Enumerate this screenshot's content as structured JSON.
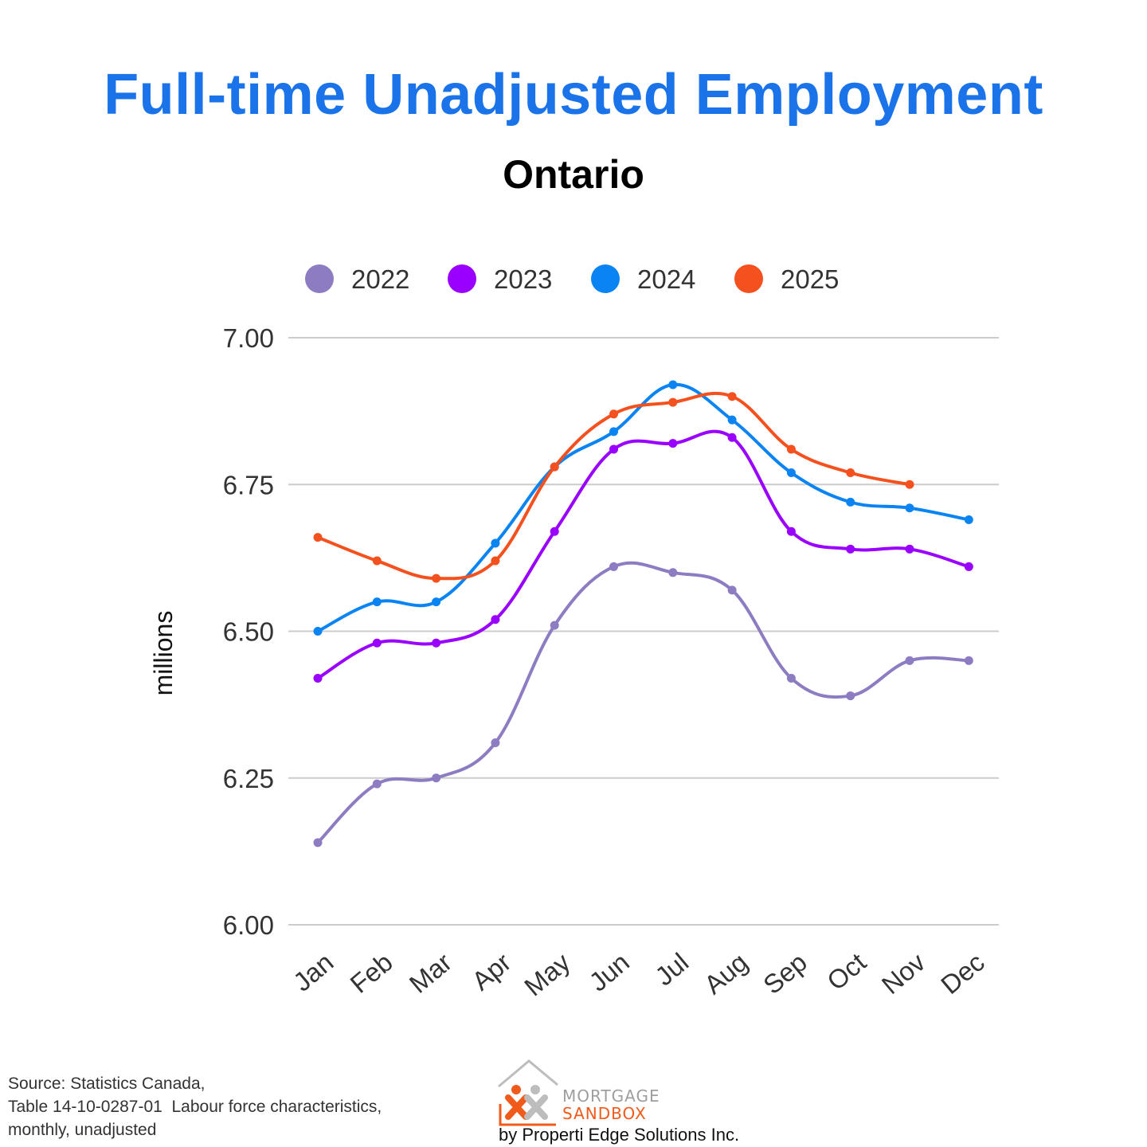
{
  "title": "Full-time Unadjusted Employment",
  "subtitle": "Ontario",
  "chart_data": {
    "type": "line",
    "title": "Full-time Unadjusted Employment",
    "subtitle": "Ontario",
    "ylabel": "millions",
    "xlabel": "",
    "categories": [
      "Jan",
      "Feb",
      "Mar",
      "Apr",
      "May",
      "Jun",
      "Jul",
      "Aug",
      "Sep",
      "Oct",
      "Nov",
      "Dec"
    ],
    "ylim": [
      6.0,
      7.0
    ],
    "yticks": [
      "6.00",
      "6.25",
      "6.50",
      "6.75",
      "7.00"
    ],
    "grid": true,
    "legend_position": "top",
    "series": [
      {
        "name": "2022",
        "color": "#8e7cc3",
        "values": [
          6.14,
          6.24,
          6.25,
          6.31,
          6.51,
          6.61,
          6.6,
          6.57,
          6.42,
          6.39,
          6.45,
          6.45
        ]
      },
      {
        "name": "2023",
        "color": "#9900ff",
        "values": [
          6.42,
          6.48,
          6.48,
          6.52,
          6.67,
          6.81,
          6.82,
          6.83,
          6.67,
          6.64,
          6.64,
          6.61
        ]
      },
      {
        "name": "2024",
        "color": "#0b84f3",
        "values": [
          6.5,
          6.55,
          6.55,
          6.65,
          6.78,
          6.84,
          6.92,
          6.86,
          6.77,
          6.72,
          6.71,
          6.69
        ]
      },
      {
        "name": "2025",
        "color": "#f4511e",
        "values": [
          6.66,
          6.62,
          6.59,
          6.62,
          6.78,
          6.87,
          6.89,
          6.9,
          6.81,
          6.77,
          6.75,
          null
        ]
      }
    ]
  },
  "source": {
    "lines": [
      "Source: Statistics Canada,",
      "Table 14-10-0287-01  Labour force characteristics,",
      "monthly, unadjusted"
    ]
  },
  "logo": {
    "line1": "MORTGAGE",
    "line2": "SANDBOX",
    "byline": "by Properti Edge Solutions Inc."
  }
}
